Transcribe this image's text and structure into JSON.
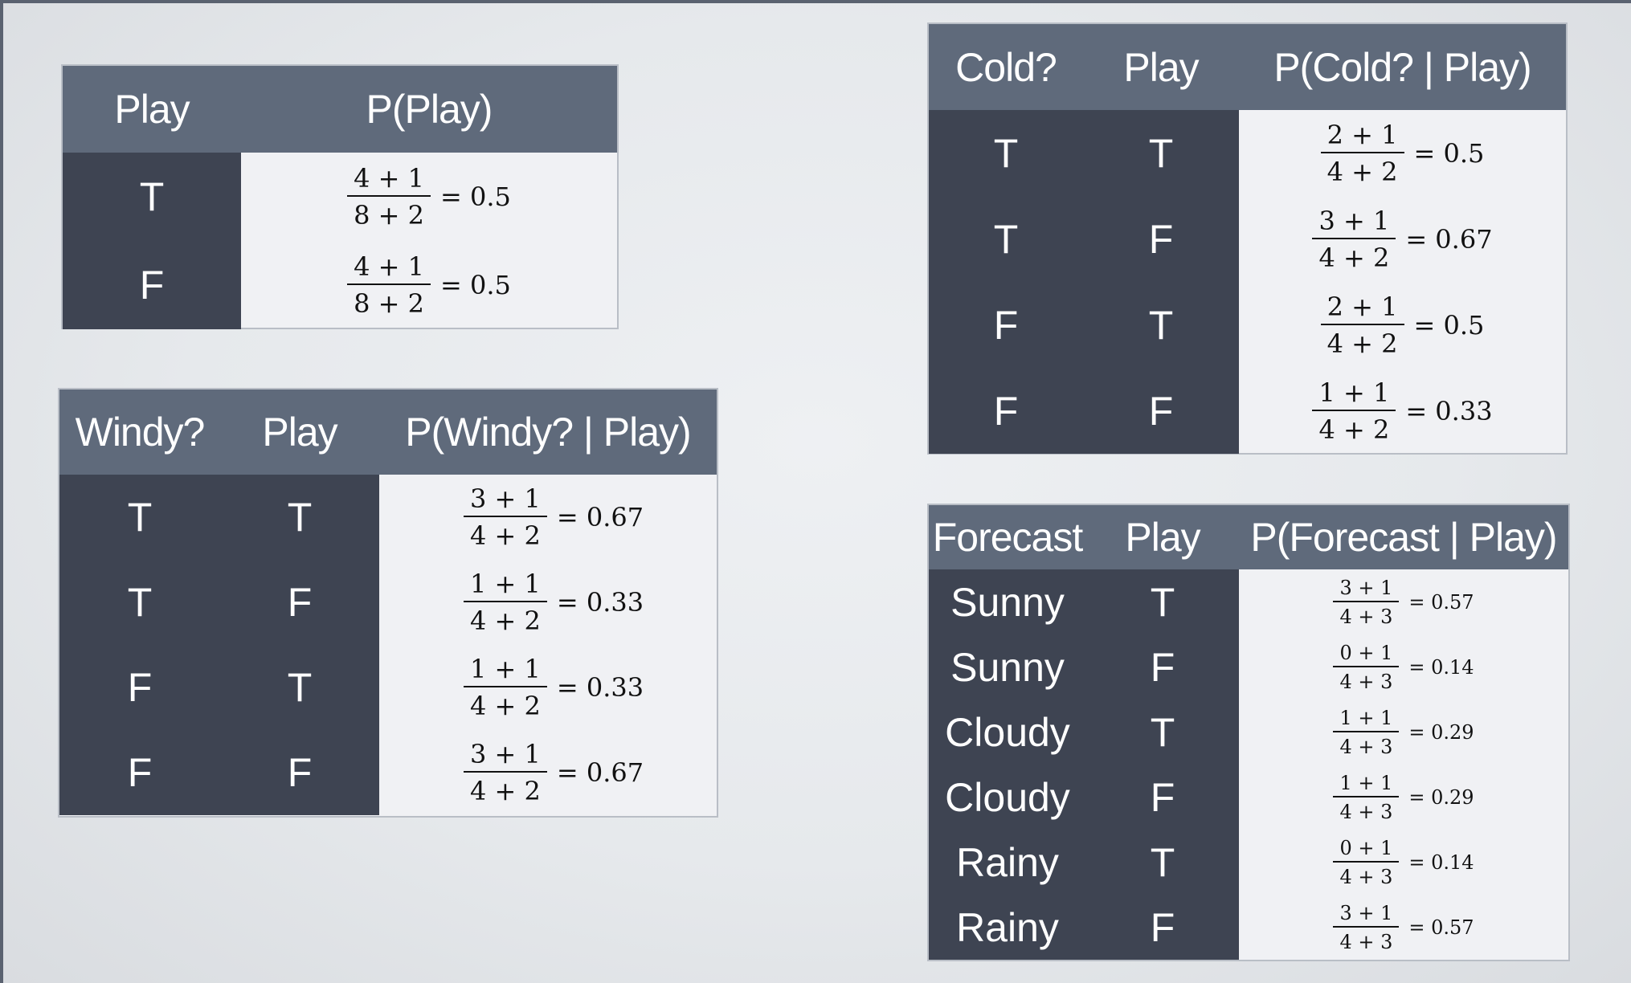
{
  "play_table": {
    "headers": [
      "Play",
      "P(Play)"
    ],
    "rows": [
      {
        "play": "T",
        "num": "4 + 1",
        "den": "8 + 2",
        "eq": "= 0.5"
      },
      {
        "play": "F",
        "num": "4 + 1",
        "den": "8 + 2",
        "eq": "= 0.5"
      }
    ]
  },
  "windy_table": {
    "headers": [
      "Windy?",
      "Play",
      "P(Windy? | Play)"
    ],
    "rows": [
      {
        "a": "T",
        "play": "T",
        "num": "3 + 1",
        "den": "4 + 2",
        "eq": "= 0.67"
      },
      {
        "a": "T",
        "play": "F",
        "num": "1 + 1",
        "den": "4 + 2",
        "eq": "= 0.33"
      },
      {
        "a": "F",
        "play": "T",
        "num": "1 + 1",
        "den": "4 + 2",
        "eq": "= 0.33"
      },
      {
        "a": "F",
        "play": "F",
        "num": "3 + 1",
        "den": "4 + 2",
        "eq": "= 0.67"
      }
    ]
  },
  "cold_table": {
    "headers": [
      "Cold?",
      "Play",
      "P(Cold? | Play)"
    ],
    "rows": [
      {
        "a": "T",
        "play": "T",
        "num": "2 + 1",
        "den": "4 + 2",
        "eq": "= 0.5"
      },
      {
        "a": "T",
        "play": "F",
        "num": "3 + 1",
        "den": "4 + 2",
        "eq": "= 0.67"
      },
      {
        "a": "F",
        "play": "T",
        "num": "2 + 1",
        "den": "4 + 2",
        "eq": "= 0.5"
      },
      {
        "a": "F",
        "play": "F",
        "num": "1 + 1",
        "den": "4 + 2",
        "eq": "= 0.33"
      }
    ]
  },
  "forecast_table": {
    "headers": [
      "Forecast",
      "Play",
      "P(Forecast | Play)"
    ],
    "rows": [
      {
        "a": "Sunny",
        "play": "T",
        "num": "3 + 1",
        "den": "4 + 3",
        "eq": "= 0.57"
      },
      {
        "a": "Sunny",
        "play": "F",
        "num": "0 + 1",
        "den": "4 + 3",
        "eq": "= 0.14"
      },
      {
        "a": "Cloudy",
        "play": "T",
        "num": "1 + 1",
        "den": "4 + 3",
        "eq": "= 0.29"
      },
      {
        "a": "Cloudy",
        "play": "F",
        "num": "1 + 1",
        "den": "4 + 3",
        "eq": "= 0.29"
      },
      {
        "a": "Rainy",
        "play": "T",
        "num": "0 + 1",
        "den": "4 + 3",
        "eq": "= 0.14"
      },
      {
        "a": "Rainy",
        "play": "F",
        "num": "3 + 1",
        "den": "4 + 3",
        "eq": "= 0.57"
      }
    ]
  }
}
